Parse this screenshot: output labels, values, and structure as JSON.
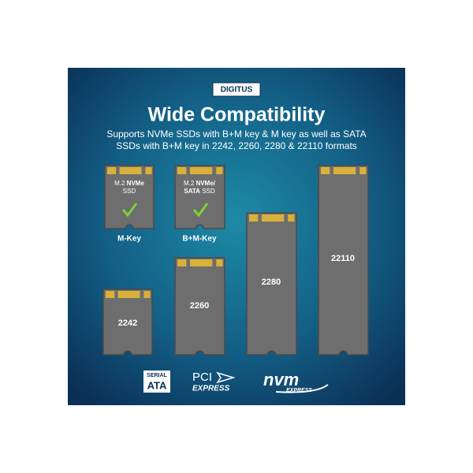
{
  "header": {
    "brand": "DIGITUS",
    "title": "Wide Compatibility",
    "subtitle": [
      "Supports  NVMe SSDs with B+M key & M key as well as SATA",
      "SSDs with B+M key in 2242, 2260, 2280 & 22110 formats"
    ]
  },
  "modules": [
    {
      "lines": [
        [
          "M.2",
          "NVMe"
        ],
        [
          "SSD"
        ]
      ],
      "caption": "M-Key"
    },
    {
      "lines": [
        [
          "M.2",
          "NVMe/"
        ],
        [
          "SATA",
          "SSD"
        ]
      ],
      "caption": "B+M-Key"
    },
    {
      "label": "2242"
    },
    {
      "label": "2260"
    },
    {
      "label": "2280"
    },
    {
      "label": "22110"
    }
  ],
  "logos": {
    "sata": [
      "SERIAL",
      "ATA"
    ],
    "pci": [
      "PCI",
      "EXPRESS"
    ],
    "nvm": [
      "nvm",
      "EXPRESS"
    ]
  }
}
